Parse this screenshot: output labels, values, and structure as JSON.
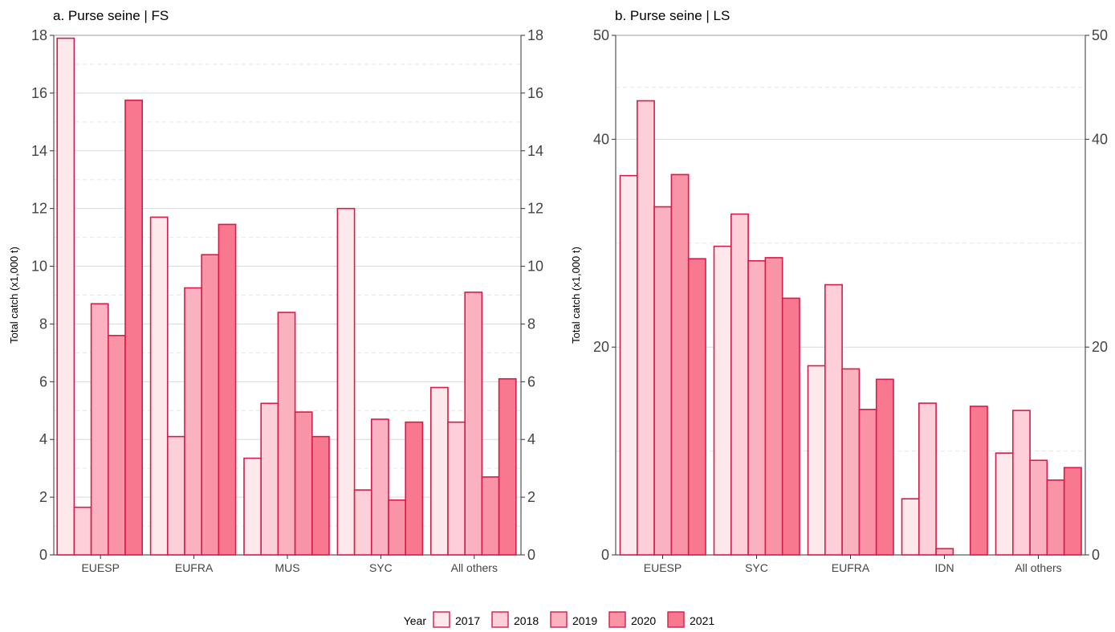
{
  "colors": {
    "stroke": "#d81b4a",
    "years": [
      "#fde8ec",
      "#fdcfd8",
      "#fbb2c0",
      "#f993a6",
      "#f7788f"
    ],
    "grid_major": "#d9d9d9",
    "grid_minor": "#e6e6e6",
    "axis": "#333333"
  },
  "legend": {
    "title": "Year",
    "items": [
      "2017",
      "2018",
      "2019",
      "2020",
      "2021"
    ],
    "position": "bottom"
  },
  "chart_data": [
    {
      "type": "bar",
      "title": "a. Purse seine | FS",
      "xlabel": "",
      "ylabel": "Total catch (x1,000 t)",
      "ylim": [
        0,
        18
      ],
      "yticks": [
        0,
        2,
        4,
        6,
        8,
        10,
        12,
        14,
        16,
        18
      ],
      "secondary_y_axis": true,
      "grid": true,
      "categories": [
        "EUESP",
        "EUFRA",
        "MUS",
        "SYC",
        "All others"
      ],
      "series": [
        {
          "name": "2017",
          "values": [
            17.9,
            11.7,
            3.35,
            12.0,
            5.8
          ]
        },
        {
          "name": "2018",
          "values": [
            1.65,
            4.1,
            5.25,
            2.25,
            4.6
          ]
        },
        {
          "name": "2019",
          "values": [
            8.7,
            9.25,
            8.4,
            4.7,
            9.1
          ]
        },
        {
          "name": "2020",
          "values": [
            7.6,
            10.4,
            4.95,
            1.9,
            2.7
          ]
        },
        {
          "name": "2021",
          "values": [
            15.75,
            11.45,
            4.1,
            4.6,
            6.1
          ]
        }
      ]
    },
    {
      "type": "bar",
      "title": "b. Purse seine | LS",
      "xlabel": "",
      "ylabel": "Total catch (x1,000 t)",
      "ylim": [
        0,
        50
      ],
      "yticks": [
        0,
        20,
        40
      ],
      "yticks_extra": [
        50
      ],
      "secondary_y_axis": true,
      "grid": true,
      "categories": [
        "EUESP",
        "SYC",
        "EUFRA",
        "IDN",
        "All others"
      ],
      "series": [
        {
          "name": "2017",
          "values": [
            36.5,
            29.7,
            18.2,
            5.4,
            9.8
          ]
        },
        {
          "name": "2018",
          "values": [
            43.7,
            32.8,
            26.0,
            14.6,
            13.9
          ]
        },
        {
          "name": "2019",
          "values": [
            33.5,
            28.3,
            17.9,
            0.6,
            9.1
          ]
        },
        {
          "name": "2020",
          "values": [
            36.6,
            28.6,
            14.0,
            0.0,
            7.2
          ]
        },
        {
          "name": "2021",
          "values": [
            28.5,
            24.7,
            16.9,
            14.3,
            8.4
          ]
        }
      ]
    }
  ]
}
